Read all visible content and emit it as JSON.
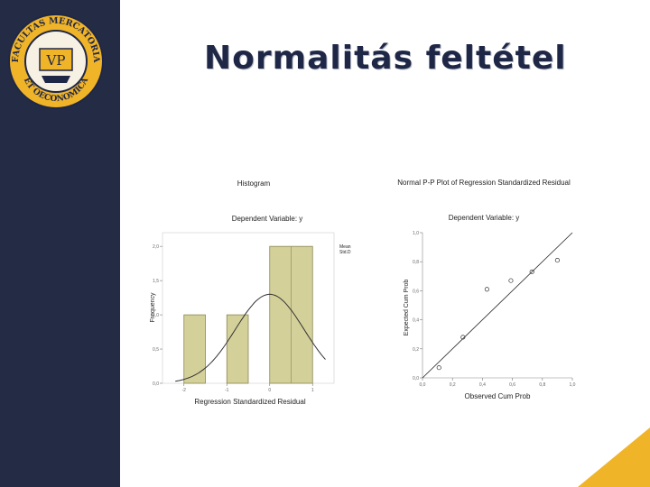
{
  "slide": {
    "title": "Normalitás feltétel",
    "logo_text_top": "FACULTAS MERCATORIA",
    "logo_text_bottom": "ET OECONOMICA",
    "logo_initials": "VP",
    "sidebar_color": "#232b45",
    "accent_color": "#f0b429"
  },
  "chart_data": [
    {
      "type": "bar",
      "title": "Histogram",
      "subtitle": "Dependent Variable: y",
      "xlabel": "Regression Standardized Residual",
      "ylabel": "Frequency",
      "legend_text": [
        "Mean",
        "Std.D"
      ],
      "x_ticks": [
        "-2",
        "-1",
        "0",
        "1"
      ],
      "y_ticks": [
        "0,0",
        "0,5",
        "1,0",
        "1,5",
        "2,0"
      ],
      "xlim": [
        -2.5,
        1.5
      ],
      "ylim": [
        0,
        2.2
      ],
      "bins": [
        {
          "from": -2.0,
          "to": -1.5,
          "value": 1
        },
        {
          "from": -1.0,
          "to": -0.5,
          "value": 1
        },
        {
          "from": 0.0,
          "to": 1.0,
          "value": 2
        }
      ],
      "normal_curve": {
        "mean": 0.0,
        "sd": 0.8,
        "peak": 1.3
      },
      "bar_color": "#d3d09a"
    },
    {
      "type": "scatter",
      "title": "Normal P-P Plot of Regression Standardized Residual",
      "subtitle": "Dependent Variable: y",
      "xlabel": "Observed Cum Prob",
      "ylabel": "Expected Cum Prob",
      "x_ticks": [
        "0,0",
        "0,2",
        "0,4",
        "0,6",
        "0,8",
        "1,0"
      ],
      "y_ticks": [
        "0,0",
        "0,2",
        "0,4",
        "0,6",
        "0,8",
        "1,0"
      ],
      "xlim": [
        0,
        1
      ],
      "ylim": [
        0,
        1
      ],
      "points": [
        {
          "x": 0.11,
          "y": 0.07
        },
        {
          "x": 0.27,
          "y": 0.28
        },
        {
          "x": 0.43,
          "y": 0.61
        },
        {
          "x": 0.59,
          "y": 0.67
        },
        {
          "x": 0.73,
          "y": 0.73
        },
        {
          "x": 0.9,
          "y": 0.81
        }
      ],
      "reference_line": [
        [
          0,
          0
        ],
        [
          1,
          1
        ]
      ]
    }
  ]
}
